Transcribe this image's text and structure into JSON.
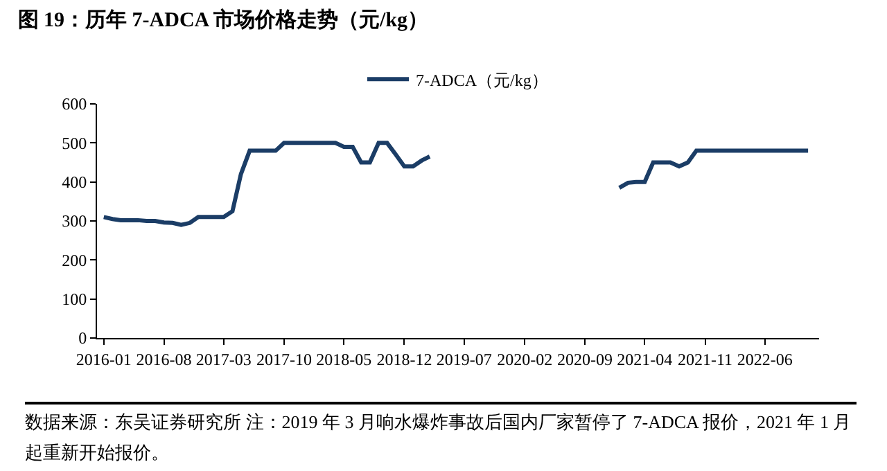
{
  "chart_data": {
    "type": "line",
    "title": "图 19：历年 7-ADCA 市场价格走势（元/kg）",
    "annotations": [
      "数据来源：东吴证券研究所 注：2019 年 3 月响水爆炸事故后国内厂家暂停了 7-ADCA 报价，2021 年 1 月起重新开始报价。"
    ],
    "x": [
      "2016-01",
      "2016-02",
      "2016-03",
      "2016-04",
      "2016-05",
      "2016-06",
      "2016-07",
      "2016-08",
      "2016-09",
      "2016-10",
      "2016-11",
      "2016-12",
      "2017-01",
      "2017-02",
      "2017-03",
      "2017-04",
      "2017-05",
      "2017-06",
      "2017-07",
      "2017-08",
      "2017-09",
      "2017-10",
      "2017-11",
      "2017-12",
      "2018-01",
      "2018-02",
      "2018-03",
      "2018-04",
      "2018-05",
      "2018-06",
      "2018-07",
      "2018-08",
      "2018-09",
      "2018-10",
      "2018-11",
      "2018-12",
      "2019-01",
      "2019-02",
      "2019-03",
      "2019-04",
      "2021-01",
      "2021-02",
      "2021-03",
      "2021-04",
      "2021-05",
      "2021-06",
      "2021-07",
      "2021-08",
      "2021-09",
      "2021-10",
      "2021-11",
      "2021-12",
      "2022-01",
      "2022-02",
      "2022-03",
      "2022-04",
      "2022-05",
      "2022-06",
      "2022-07",
      "2022-08",
      "2022-09",
      "2022-10",
      "2022-11"
    ],
    "series": [
      {
        "name": "7-ADCA（元/kg）",
        "color": "#1b3d66",
        "values": [
          310,
          305,
          302,
          302,
          302,
          300,
          300,
          296,
          295,
          290,
          295,
          310,
          310,
          310,
          310,
          325,
          420,
          480,
          480,
          480,
          480,
          500,
          500,
          500,
          500,
          500,
          500,
          500,
          490,
          490,
          450,
          450,
          500,
          500,
          470,
          440,
          440,
          455,
          465,
          null,
          385,
          398,
          400,
          400,
          450,
          450,
          450,
          440,
          450,
          480,
          480,
          480,
          480,
          480,
          480,
          480,
          480,
          480,
          480,
          480,
          480,
          480,
          480
        ]
      }
    ],
    "xlim": [
      "2015-12-08",
      "2022-12-10"
    ],
    "xticks": [
      "2016-01",
      "2016-08",
      "2017-03",
      "2017-10",
      "2018-05",
      "2018-12",
      "2019-07",
      "2020-02",
      "2020-09",
      "2021-04",
      "2021-11",
      "2022-06"
    ],
    "ylim": [
      0,
      600
    ],
    "yticks": [
      0,
      100,
      200,
      300,
      400,
      500,
      600
    ],
    "grid": false,
    "legend": "top",
    "marker": "none",
    "line_style": "solid"
  }
}
